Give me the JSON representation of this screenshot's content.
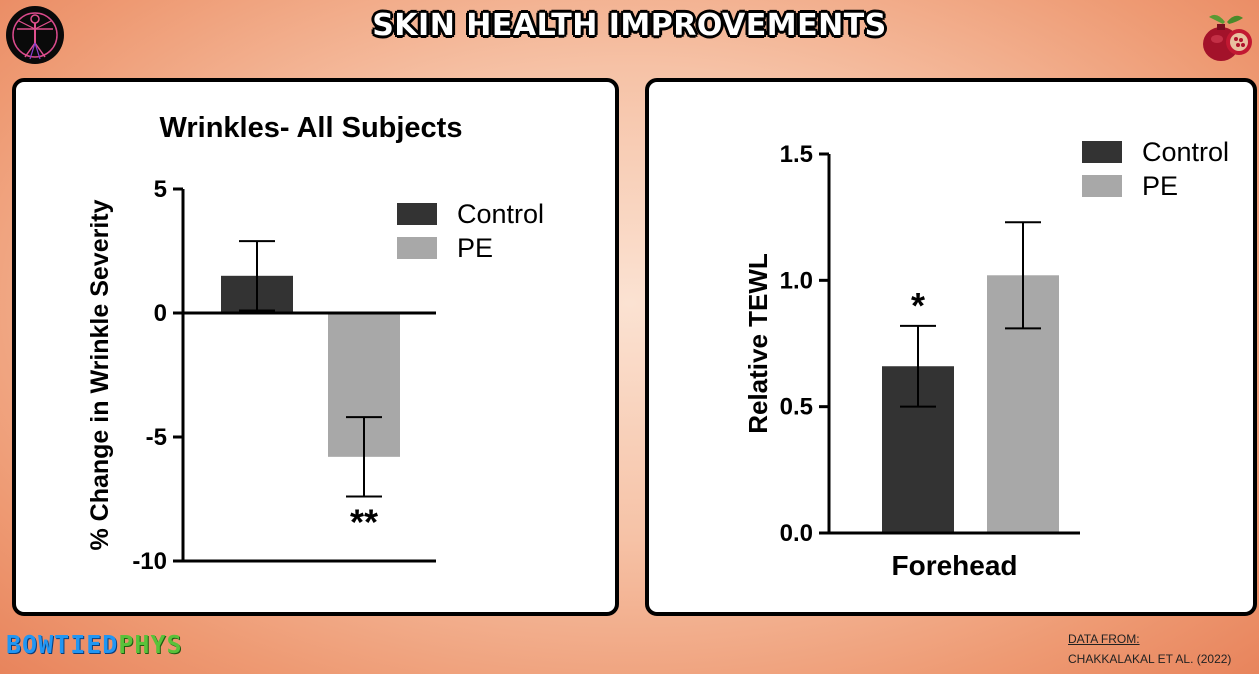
{
  "header": {
    "title": "SKIN HEALTH IMPROVEMENTS"
  },
  "branding": {
    "part1": "BOWTIED",
    "part2": "PHYS"
  },
  "source": {
    "label": "DATA FROM:",
    "citation": "CHAKKALAKAL ET AL. (2022)"
  },
  "colors": {
    "control": "#333333",
    "pe": "#a8a8a8",
    "panel_border": "#000000",
    "background": "#f4b89a"
  },
  "chart_data": [
    {
      "type": "bar",
      "title": "Wrinkles- All Subjects",
      "ylabel": "% Change in Wrinkle Severity",
      "xlabel": "",
      "ylim": [
        -10,
        5
      ],
      "yticks": [
        "5",
        "0",
        "-5",
        "-10"
      ],
      "ytick_values": [
        5,
        0,
        -5,
        -10
      ],
      "categories": [
        "Control",
        "PE"
      ],
      "series": [
        {
          "name": "Control",
          "value": 1.5,
          "error": 1.4,
          "annotation": ""
        },
        {
          "name": "PE",
          "value": -5.8,
          "error": 1.6,
          "annotation": "**"
        }
      ],
      "legend": {
        "position": "top-right",
        "entries": [
          "Control",
          "PE"
        ]
      },
      "grid": false
    },
    {
      "type": "bar",
      "title": "",
      "ylabel": "Relative TEWL",
      "xlabel": "Forehead",
      "ylim": [
        0,
        1.5
      ],
      "yticks": [
        "1.5",
        "1.0",
        "0.5",
        "0.0"
      ],
      "ytick_values": [
        1.5,
        1.0,
        0.5,
        0.0
      ],
      "categories": [
        "Control",
        "PE"
      ],
      "series": [
        {
          "name": "Control",
          "value": 0.66,
          "error": 0.16,
          "annotation": "*"
        },
        {
          "name": "PE",
          "value": 1.02,
          "error": 0.21,
          "annotation": ""
        }
      ],
      "legend": {
        "position": "top-right",
        "entries": [
          "Control",
          "PE"
        ]
      },
      "grid": false
    }
  ]
}
